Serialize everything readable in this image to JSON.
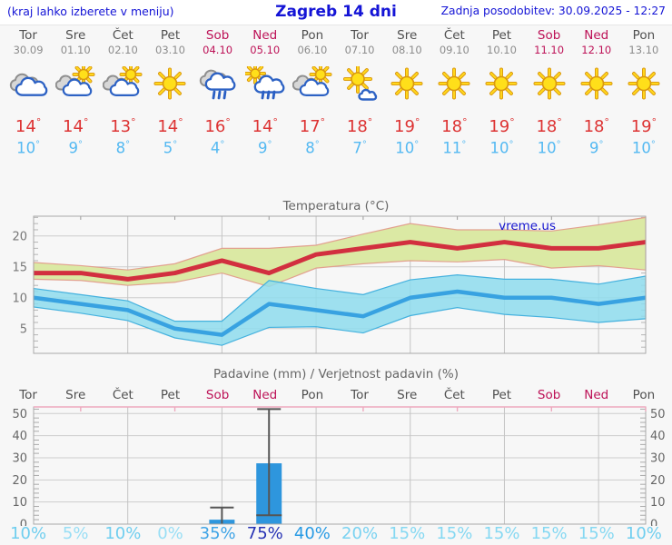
{
  "header": {
    "hint": "(kraj lahko izberete v meniju)",
    "title": "Zagreb 14 dni",
    "updated": "Zadnja posodobitev: 30.09.2025 - 12:27"
  },
  "units": {
    "degree": "°"
  },
  "forecast_days": [
    {
      "name": "Tor",
      "date": "30.09",
      "weekend": false,
      "icon": "cloudy",
      "tmax": "14",
      "tmin": "10"
    },
    {
      "name": "Sre",
      "date": "01.10",
      "weekend": false,
      "icon": "partly-cloudy",
      "tmax": "14",
      "tmin": "9"
    },
    {
      "name": "Čet",
      "date": "02.10",
      "weekend": false,
      "icon": "partly-cloudy",
      "tmax": "13",
      "tmin": "8"
    },
    {
      "name": "Pet",
      "date": "03.10",
      "weekend": false,
      "icon": "sunny",
      "tmax": "14",
      "tmin": "5"
    },
    {
      "name": "Sob",
      "date": "04.10",
      "weekend": true,
      "icon": "rain",
      "tmax": "16",
      "tmin": "4"
    },
    {
      "name": "Ned",
      "date": "05.10",
      "weekend": true,
      "icon": "sun-rain",
      "tmax": "14",
      "tmin": "9"
    },
    {
      "name": "Pon",
      "date": "06.10",
      "weekend": false,
      "icon": "partly-cloudy",
      "tmax": "17",
      "tmin": "8"
    },
    {
      "name": "Tor",
      "date": "07.10",
      "weekend": false,
      "icon": "mostly-sunny",
      "tmax": "18",
      "tmin": "7"
    },
    {
      "name": "Sre",
      "date": "08.10",
      "weekend": false,
      "icon": "sunny",
      "tmax": "19",
      "tmin": "10"
    },
    {
      "name": "Čet",
      "date": "09.10",
      "weekend": false,
      "icon": "sunny",
      "tmax": "18",
      "tmin": "11"
    },
    {
      "name": "Pet",
      "date": "10.10",
      "weekend": false,
      "icon": "sunny",
      "tmax": "19",
      "tmin": "10"
    },
    {
      "name": "Sob",
      "date": "11.10",
      "weekend": true,
      "icon": "sunny",
      "tmax": "18",
      "tmin": "10"
    },
    {
      "name": "Ned",
      "date": "12.10",
      "weekend": true,
      "icon": "sunny",
      "tmax": "18",
      "tmin": "9"
    },
    {
      "name": "Pon",
      "date": "13.10",
      "weekend": false,
      "icon": "sunny",
      "tmax": "19",
      "tmin": "10"
    }
  ],
  "chart_data": [
    {
      "type": "line",
      "title": "Temperatura (°C)",
      "watermark": "vreme.us",
      "x_days": [
        "Tor",
        "Sre",
        "Čet",
        "Pet",
        "Sob",
        "Ned",
        "Pon",
        "Tor",
        "Sre",
        "Čet",
        "Pet",
        "Sob",
        "Ned",
        "Pon"
      ],
      "ylim": [
        1,
        23.2
      ],
      "yticks": [
        5,
        10,
        15,
        20
      ],
      "grid": true,
      "legend": false,
      "series": [
        {
          "name": "max-temperature",
          "color": "#d22f3f",
          "values": [
            14,
            14,
            13,
            14,
            16,
            14,
            17,
            18,
            19,
            18,
            19,
            18,
            18,
            19
          ]
        },
        {
          "name": "min-temperature",
          "color": "#38a2e1",
          "values": [
            10,
            9,
            8,
            5,
            4,
            9,
            8,
            7,
            10,
            11,
            10,
            10,
            9,
            10
          ]
        }
      ],
      "bands": [
        {
          "name": "max-temperature-range",
          "fill": "#dbe9a4",
          "edge": "#e2a18f",
          "upper": [
            15.7,
            15.2,
            14.5,
            15.5,
            18,
            18,
            18.5,
            20.3,
            22,
            21,
            21,
            20.8,
            21.8,
            23
          ],
          "lower": [
            13,
            12.8,
            12,
            12.5,
            14,
            11.8,
            14.8,
            15.5,
            16,
            15.8,
            16.2,
            14.8,
            15.2,
            14.5
          ]
        },
        {
          "name": "min-temperature-range",
          "fill": "#8edced",
          "edge": "#44b1de",
          "upper": [
            11.5,
            10.5,
            9.5,
            6.2,
            6.2,
            12.8,
            11.5,
            10.5,
            12.9,
            13.7,
            13,
            13,
            12.2,
            13.5
          ],
          "lower": [
            8.5,
            7.5,
            6.3,
            3.5,
            2.3,
            5.2,
            5.3,
            4.3,
            7.1,
            8.4,
            7.3,
            6.8,
            6,
            6.6
          ]
        }
      ]
    },
    {
      "type": "bar",
      "title": "Padavine (mm) / Verjetnost padavin (%)",
      "x_days": [
        "Tor",
        "Sre",
        "Čet",
        "Pet",
        "Sob",
        "Ned",
        "Pon",
        "Tor",
        "Sre",
        "Čet",
        "Pet",
        "Sob",
        "Ned",
        "Pon"
      ],
      "weekend_indices": [
        4,
        5,
        11,
        12
      ],
      "ylim": [
        0,
        53
      ],
      "yticks": [
        0,
        10,
        20,
        30,
        40,
        50
      ],
      "grid": true,
      "bar_color": "#2e96dd",
      "bars_mm": [
        0,
        0,
        0,
        0,
        2,
        27.5,
        0,
        0,
        0,
        0,
        0,
        0,
        0,
        0
      ],
      "whiskers": [
        {
          "index": 4,
          "low": 0,
          "high": 7.5
        },
        {
          "index": 5,
          "low": 4,
          "high": 52
        }
      ],
      "probabilities": [
        {
          "text": "10%",
          "color": "#6fceef"
        },
        {
          "text": "5%",
          "color": "#98def5"
        },
        {
          "text": "10%",
          "color": "#6fceef"
        },
        {
          "text": "0%",
          "color": "#98def5"
        },
        {
          "text": "35%",
          "color": "#3fa4e6"
        },
        {
          "text": "75%",
          "color": "#2531b4"
        },
        {
          "text": "40%",
          "color": "#279ae4"
        },
        {
          "text": "20%",
          "color": "#79d2f1"
        },
        {
          "text": "15%",
          "color": "#85d8f2"
        },
        {
          "text": "15%",
          "color": "#85d8f2"
        },
        {
          "text": "15%",
          "color": "#85d8f2"
        },
        {
          "text": "15%",
          "color": "#85d8f2"
        },
        {
          "text": "15%",
          "color": "#85d8f2"
        },
        {
          "text": "10%",
          "color": "#6fceef"
        }
      ]
    }
  ]
}
